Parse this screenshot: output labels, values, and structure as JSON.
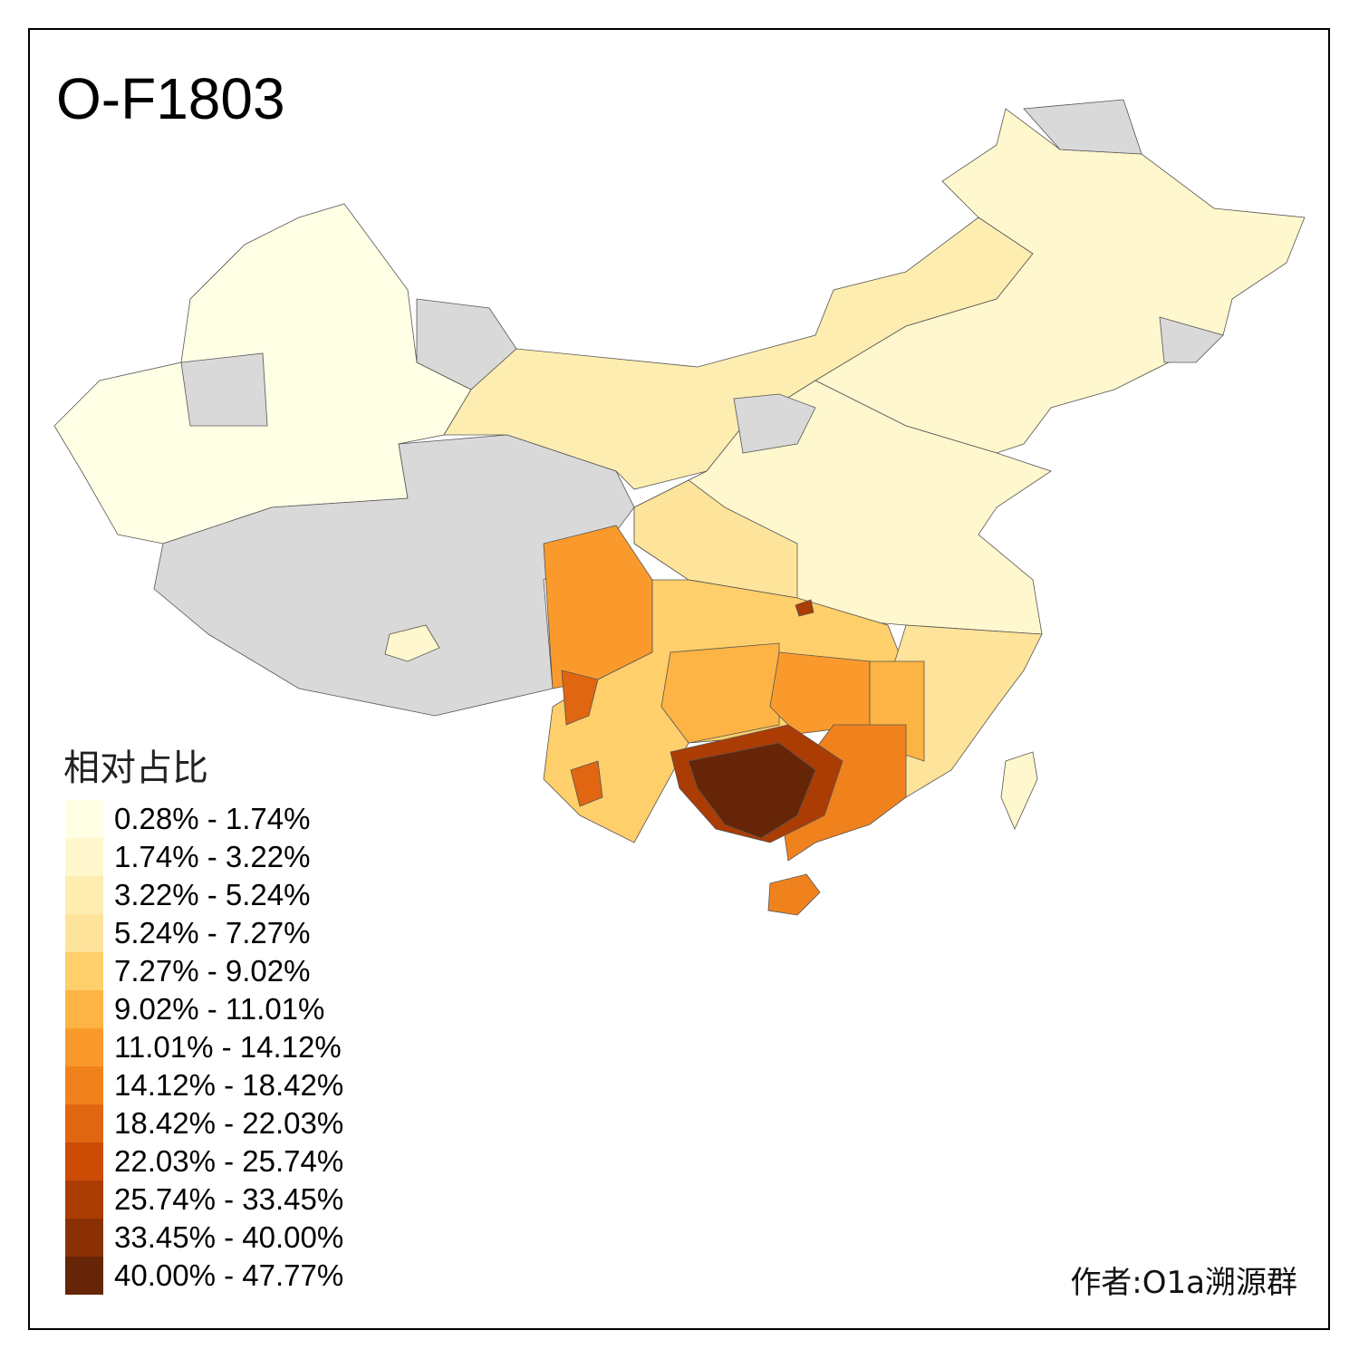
{
  "title": "O-F1803",
  "legend": {
    "title": "相对占比",
    "items": [
      {
        "label": "0.28% - 1.74%",
        "color": "#FFFFE5"
      },
      {
        "label": "1.74% - 3.22%",
        "color": "#FFF7CD"
      },
      {
        "label": "3.22% - 5.24%",
        "color": "#FEEDB0"
      },
      {
        "label": "5.24% - 7.27%",
        "color": "#FEE39A"
      },
      {
        "label": "7.27% - 9.02%",
        "color": "#FECF6A"
      },
      {
        "label": "9.02% - 11.01%",
        "color": "#FDB444"
      },
      {
        "label": "11.01% - 14.12%",
        "color": "#FB9A2C"
      },
      {
        "label": "14.12% - 18.42%",
        "color": "#F0821E"
      },
      {
        "label": "18.42% - 22.03%",
        "color": "#E06612"
      },
      {
        "label": "22.03% - 25.74%",
        "color": "#CC4C06"
      },
      {
        "label": "25.74% - 33.45%",
        "color": "#AB3C04"
      },
      {
        "label": "33.45% - 40.00%",
        "color": "#8A3004"
      },
      {
        "label": "40.00% - 47.77%",
        "color": "#662506"
      }
    ]
  },
  "no_data_color": "#D9D9D9",
  "author": "作者:O1a溯源群"
}
